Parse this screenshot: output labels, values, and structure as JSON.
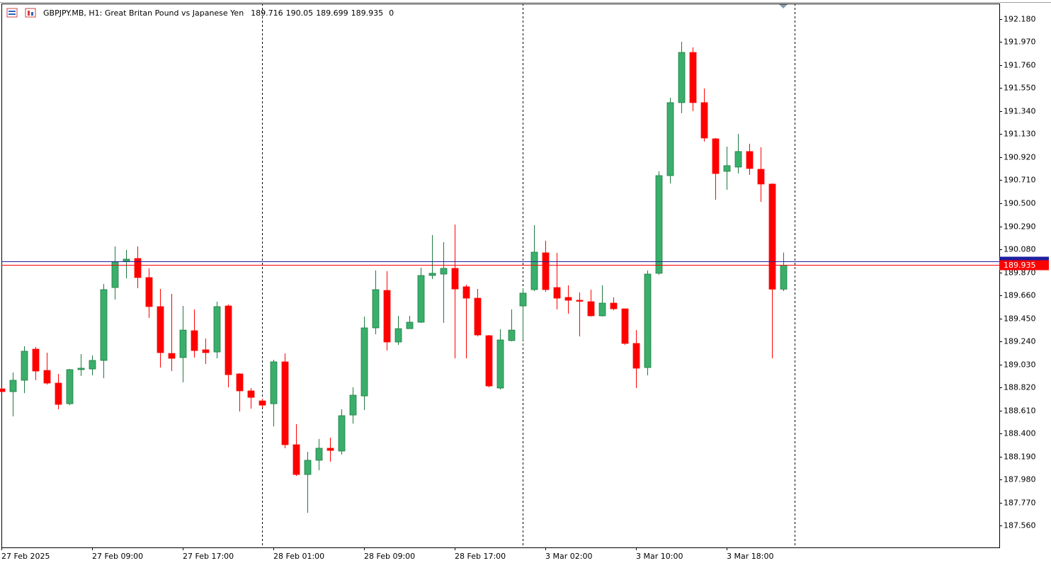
{
  "chart_data": {
    "type": "candlestick",
    "title": "GBPJPY.MB, H1:  Great Britan Pound vs Japanese Yen",
    "info_value": 0,
    "categories": [
      "27 Feb 2025",
      null,
      null,
      null,
      null,
      null,
      null,
      null,
      "27 Feb 09:00",
      null,
      null,
      null,
      null,
      null,
      null,
      null,
      "27 Feb 17:00",
      null,
      null,
      null,
      null,
      null,
      null,
      null,
      "28 Feb 01:00",
      null,
      null,
      null,
      null,
      null,
      null,
      null,
      "28 Feb 09:00",
      null,
      null,
      null,
      null,
      null,
      null,
      null,
      "28 Feb 17:00",
      null,
      null,
      null,
      null,
      null,
      null,
      null,
      "3 Mar 02:00",
      null,
      null,
      null,
      null,
      null,
      null,
      null,
      "3 Mar 10:00",
      null,
      null,
      null,
      null,
      null,
      null,
      null,
      "3 Mar 18:00",
      null,
      null,
      null,
      null,
      null
    ],
    "open": [
      188.807,
      188.781,
      188.885,
      189.169,
      188.975,
      188.859,
      188.671,
      188.982,
      188.988,
      189.066,
      189.731,
      189.97,
      189.996,
      189.822,
      189.557,
      189.13,
      189.092,
      189.337,
      189.163,
      189.143,
      189.563,
      188.943,
      188.788,
      188.697,
      188.671,
      189.053,
      188.297,
      188.025,
      188.155,
      188.265,
      188.239,
      188.568,
      188.742,
      189.363,
      189.705,
      189.234,
      189.356,
      189.415,
      189.841,
      189.854,
      189.906,
      189.738,
      189.634,
      189.292,
      188.814,
      189.247,
      189.563,
      189.712,
      190.048,
      189.731,
      189.641,
      189.615,
      189.602,
      189.473,
      189.589,
      189.537,
      189.221,
      189.001,
      189.861,
      190.752,
      191.418,
      191.876,
      191.418,
      191.088,
      190.791,
      190.83,
      190.972,
      190.81,
      190.675,
      189.716
    ],
    "high": [
      188.814,
      188.956,
      189.196,
      189.189,
      189.137,
      188.943,
      188.988,
      189.124,
      189.111,
      189.764,
      190.106,
      190.074,
      190.106,
      189.906,
      189.718,
      189.673,
      189.563,
      189.531,
      189.266,
      189.602,
      189.576,
      188.949,
      188.814,
      188.716,
      189.072,
      189.13,
      188.484,
      188.232,
      188.349,
      188.361,
      188.62,
      188.82,
      189.466,
      189.887,
      189.88,
      189.473,
      189.473,
      189.912,
      190.21,
      190.145,
      190.306,
      189.757,
      189.718,
      189.298,
      189.35,
      189.531,
      189.725,
      190.3,
      190.158,
      190.048,
      189.751,
      189.686,
      189.712,
      189.751,
      189.641,
      189.537,
      189.343,
      189.887,
      190.791,
      191.463,
      191.973,
      191.922,
      191.547,
      191.095,
      191.017,
      191.133,
      191.043,
      191.011,
      190.681,
      190.05
    ],
    "low": [
      188.775,
      188.555,
      188.768,
      188.885,
      188.846,
      188.62,
      188.658,
      188.924,
      188.93,
      188.904,
      189.621,
      189.815,
      189.725,
      189.453,
      189.001,
      188.969,
      188.866,
      189.092,
      189.034,
      189.085,
      188.82,
      188.6,
      188.626,
      188.633,
      188.465,
      188.265,
      188.012,
      187.676,
      188.064,
      188.142,
      188.207,
      188.49,
      188.613,
      189.305,
      189.156,
      189.208,
      189.356,
      189.408,
      189.809,
      189.408,
      189.085,
      189.085,
      189.285,
      188.82,
      188.801,
      189.24,
      189.247,
      189.699,
      189.692,
      189.531,
      189.492,
      189.285,
      189.466,
      189.466,
      189.524,
      189.208,
      188.814,
      188.93,
      189.848,
      190.681,
      191.321,
      191.34,
      191.063,
      190.532,
      190.623,
      190.771,
      190.759,
      190.513,
      189.085,
      189.699
    ],
    "close": [
      188.781,
      188.885,
      189.15,
      188.969,
      188.859,
      188.665,
      188.982,
      188.995,
      189.066,
      189.712,
      189.964,
      189.99,
      189.822,
      189.557,
      189.137,
      189.085,
      189.343,
      189.156,
      189.137,
      189.557,
      188.936,
      188.788,
      188.729,
      188.658,
      189.053,
      188.297,
      188.025,
      188.155,
      188.265,
      188.245,
      188.562,
      188.749,
      189.363,
      189.712,
      189.234,
      189.356,
      189.415,
      189.841,
      189.861,
      189.906,
      189.718,
      189.634,
      189.298,
      188.833,
      189.253,
      189.343,
      189.68,
      190.054,
      189.712,
      189.634,
      189.615,
      189.608,
      189.473,
      189.589,
      189.537,
      189.221,
      188.995,
      189.854,
      190.752,
      191.418,
      191.876,
      191.418,
      191.095,
      190.771,
      190.843,
      190.972,
      190.817,
      190.675,
      189.716,
      189.935
    ],
    "up_color": "#3aaf6b",
    "down_color": "#ff0000",
    "ylim": [
      187.36,
      192.322
    ],
    "yticks": [
      {
        "value": 192.18,
        "label": "192.180"
      },
      {
        "value": 191.97,
        "label": "191.970"
      },
      {
        "value": 191.76,
        "label": "191.760"
      },
      {
        "value": 191.55,
        "label": "191.550"
      },
      {
        "value": 191.34,
        "label": "191.340"
      },
      {
        "value": 191.13,
        "label": "191.130"
      },
      {
        "value": 190.92,
        "label": "190.920"
      },
      {
        "value": 190.71,
        "label": "190.710"
      },
      {
        "value": 190.5,
        "label": "190.500"
      },
      {
        "value": 190.29,
        "label": "190.290"
      },
      {
        "value": 190.08,
        "label": "190.080"
      },
      {
        "value": 189.87,
        "label": "189.870"
      },
      {
        "value": 189.66,
        "label": "189.660"
      },
      {
        "value": 189.45,
        "label": "189.450"
      },
      {
        "value": 189.24,
        "label": "189.240"
      },
      {
        "value": 189.03,
        "label": "189.030"
      },
      {
        "value": 188.82,
        "label": "188.820"
      },
      {
        "value": 188.61,
        "label": "188.610"
      },
      {
        "value": 188.4,
        "label": "188.400"
      },
      {
        "value": 188.19,
        "label": "188.190"
      },
      {
        "value": 187.98,
        "label": "187.980"
      },
      {
        "value": 187.77,
        "label": "187.770"
      },
      {
        "value": 187.56,
        "label": "187.560"
      }
    ],
    "price_lines": [
      {
        "value": 189.97,
        "color": "#1f1f9f"
      },
      {
        "value": 189.935,
        "color": "#ff0000"
      }
    ]
  }
}
